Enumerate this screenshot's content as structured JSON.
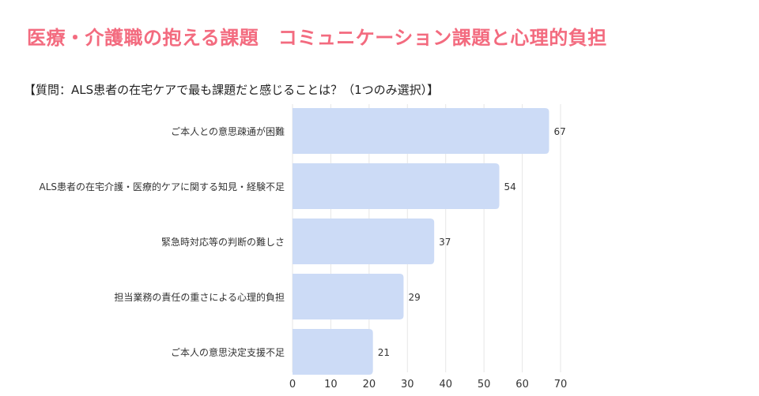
{
  "page": {
    "title": "医療・介護職の抱える課題　コミュニケーション課題と心理的負担",
    "subtitle": "【質問：ALS患者の在宅ケアで最も課題だと感じることは？（1つのみ選択）】"
  },
  "colors": {
    "title": "#f36b7f",
    "bar": "#ccdbf6",
    "grid": "#e6e6e6"
  },
  "chart_data": {
    "type": "bar",
    "orientation": "horizontal",
    "categories": [
      "ご本人との意思疎通が困難",
      "ALS患者の在宅介護・医療的ケアに関する知見・経験不足",
      "緊急時対応等の判断の難しさ",
      "担当業務の責任の重さによる心理的負担",
      "ご本人の意思決定支援不足"
    ],
    "values": [
      67,
      54,
      37,
      29,
      21
    ],
    "xlim": [
      0,
      70
    ],
    "xticks": [
      0,
      10,
      20,
      30,
      40,
      50,
      60,
      70
    ],
    "grid": true,
    "legend": "none"
  }
}
